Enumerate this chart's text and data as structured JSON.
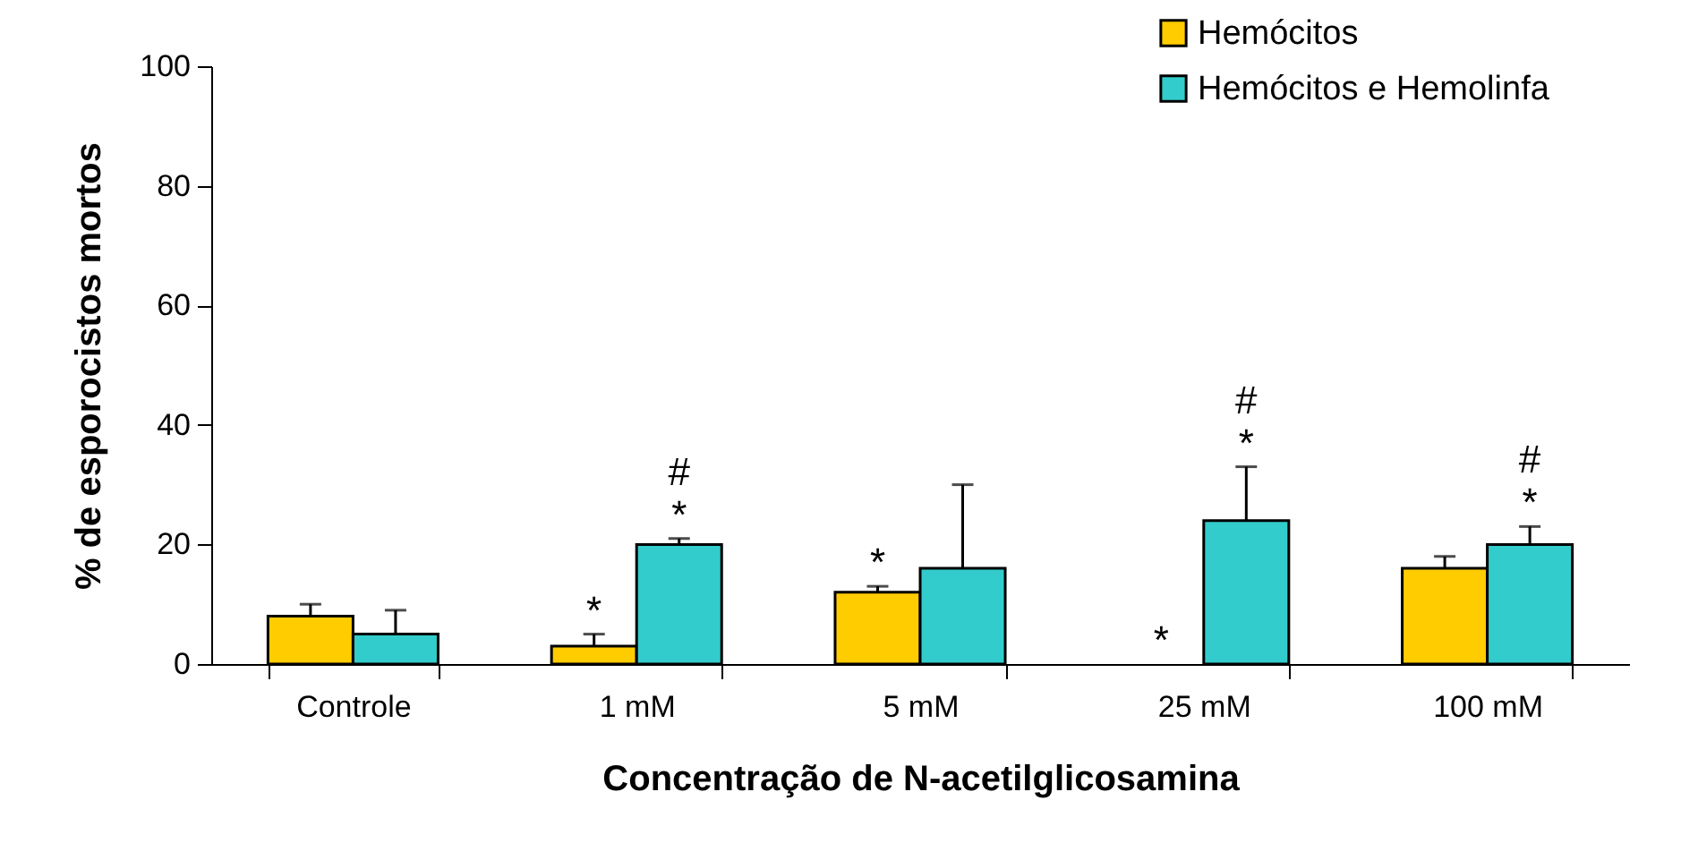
{
  "chart_data": {
    "type": "bar",
    "xlabel": "Concentração de N-acetilglicosamina",
    "ylabel": "% de esporocistos mortos",
    "categories": [
      "Controle",
      "1 mM",
      "5 mM",
      "25 mM",
      "100 mM"
    ],
    "series": [
      {
        "name": "Hemócitos",
        "color": "#ffcc00",
        "values": [
          8,
          3,
          12,
          0,
          16
        ],
        "errors": [
          [
            8,
            10
          ],
          [
            3,
            5
          ],
          [
            12,
            13
          ],
          null,
          [
            16,
            18
          ]
        ]
      },
      {
        "name": "Hemócitos e Hemolinfa",
        "color": "#33cccc",
        "values": [
          5,
          20,
          16,
          24,
          20
        ],
        "errors": [
          [
            5,
            9
          ],
          [
            20,
            21
          ],
          [
            16,
            30
          ],
          [
            24,
            33
          ],
          [
            20,
            23
          ]
        ]
      }
    ],
    "ylim": [
      0,
      100
    ],
    "yticks": [
      0,
      20,
      40,
      60,
      80,
      100
    ],
    "grid": false,
    "legend": "top right",
    "annotations": [
      {
        "text": "*",
        "x": "1 mM",
        "y": 3
      },
      {
        "text": "*",
        "x": "1 mM",
        "y": 20
      },
      {
        "text": "#",
        "x": "1 mM",
        "y": 20
      },
      {
        "text": "*",
        "x": "5 mM",
        "y": 12
      },
      {
        "text": "*",
        "x": "25 mM",
        "y": 0
      },
      {
        "text": "*",
        "x": "25 mM",
        "y": 24
      },
      {
        "text": "#",
        "x": "25 mM",
        "y": 24
      },
      {
        "text": "*",
        "x": "100 mM",
        "y": 20
      },
      {
        "text": "#",
        "x": "100 mM",
        "y": 20
      }
    ]
  }
}
